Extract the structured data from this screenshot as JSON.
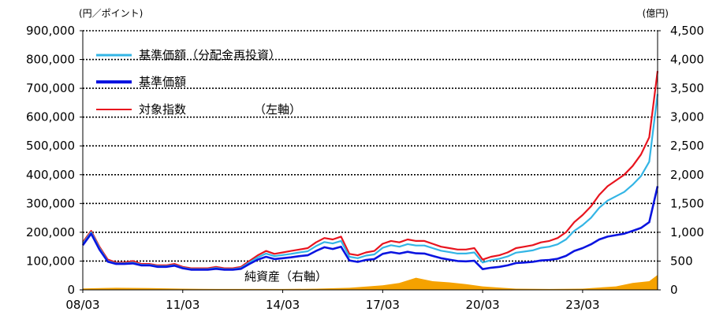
{
  "chart_data": {
    "type": "line",
    "left_axis": {
      "unit": "(円／ポイント)",
      "ylim": [
        0,
        900000
      ],
      "ticks": [
        0,
        100000,
        200000,
        300000,
        400000,
        500000,
        600000,
        700000,
        800000,
        900000
      ],
      "tick_labels": [
        "0",
        "100,000",
        "200,000",
        "300,000",
        "400,000",
        "500,000",
        "600,000",
        "700,000",
        "800,000",
        "900,000"
      ]
    },
    "right_axis": {
      "unit": "(億円)",
      "ylim": [
        0,
        4500
      ],
      "ticks": [
        0,
        500,
        1000,
        1500,
        2000,
        2500,
        3000,
        3500,
        4000,
        4500
      ],
      "tick_labels": [
        "0",
        "500",
        "1,000",
        "1,500",
        "2,000",
        "2,500",
        "3,000",
        "3,500",
        "4,000",
        "4,500"
      ]
    },
    "x_axis": {
      "range": [
        "2008-03",
        "2025-06"
      ],
      "tick_labels": [
        "08/03",
        "11/03",
        "14/03",
        "17/03",
        "20/03",
        "23/03"
      ],
      "tick_dates": [
        "2008-03",
        "2011-03",
        "2014-03",
        "2017-03",
        "2020-03",
        "2023-03"
      ]
    },
    "grid": "horizontal-dotted",
    "legend": {
      "position": "top-left",
      "items": [
        {
          "label": "基準価額（分配金再投資）",
          "color": "#33b5e5"
        },
        {
          "label": "基準価額",
          "color": "#0a14e0"
        },
        {
          "label": "対象指数",
          "color": "#e8141e"
        }
      ],
      "axis_note": "（左軸）"
    },
    "area_label": "純資産（右軸）",
    "series": [
      {
        "name": "対象指数",
        "axis": "left",
        "color": "#e8141e",
        "x": [
          "2008-03",
          "2008-06",
          "2008-09",
          "2008-12",
          "2009-03",
          "2009-06",
          "2009-09",
          "2009-12",
          "2010-03",
          "2010-06",
          "2010-09",
          "2010-12",
          "2011-03",
          "2011-06",
          "2011-09",
          "2011-12",
          "2012-03",
          "2012-06",
          "2012-09",
          "2012-12",
          "2013-03",
          "2013-06",
          "2013-09",
          "2013-12",
          "2014-03",
          "2014-06",
          "2014-09",
          "2014-12",
          "2015-03",
          "2015-06",
          "2015-09",
          "2015-12",
          "2016-03",
          "2016-06",
          "2016-09",
          "2016-12",
          "2017-03",
          "2017-06",
          "2017-09",
          "2017-12",
          "2018-03",
          "2018-06",
          "2018-09",
          "2018-12",
          "2019-03",
          "2019-06",
          "2019-09",
          "2019-12",
          "2020-03",
          "2020-06",
          "2020-09",
          "2020-12",
          "2021-03",
          "2021-06",
          "2021-09",
          "2021-12",
          "2022-03",
          "2022-06",
          "2022-09",
          "2022-12",
          "2023-03",
          "2023-06",
          "2023-09",
          "2023-12",
          "2024-03",
          "2024-06",
          "2024-09",
          "2024-12",
          "2025-03",
          "2025-06"
        ],
        "values": [
          165000,
          205000,
          150000,
          105000,
          95000,
          95000,
          100000,
          90000,
          90000,
          85000,
          85000,
          90000,
          80000,
          75000,
          75000,
          75000,
          80000,
          75000,
          75000,
          80000,
          100000,
          120000,
          135000,
          125000,
          130000,
          135000,
          140000,
          145000,
          165000,
          180000,
          175000,
          185000,
          125000,
          120000,
          130000,
          135000,
          160000,
          170000,
          165000,
          175000,
          170000,
          170000,
          160000,
          150000,
          145000,
          140000,
          140000,
          145000,
          105000,
          115000,
          120000,
          130000,
          145000,
          150000,
          155000,
          165000,
          170000,
          180000,
          200000,
          235000,
          260000,
          290000,
          330000,
          360000,
          380000,
          400000,
          430000,
          470000,
          530000,
          760000
        ]
      },
      {
        "name": "基準価額（分配金再投資）",
        "axis": "left",
        "color": "#33b5e5",
        "x": [
          "2008-03",
          "2008-06",
          "2008-09",
          "2008-12",
          "2009-03",
          "2009-06",
          "2009-09",
          "2009-12",
          "2010-03",
          "2010-06",
          "2010-09",
          "2010-12",
          "2011-03",
          "2011-06",
          "2011-09",
          "2011-12",
          "2012-03",
          "2012-06",
          "2012-09",
          "2012-12",
          "2013-03",
          "2013-06",
          "2013-09",
          "2013-12",
          "2014-03",
          "2014-06",
          "2014-09",
          "2014-12",
          "2015-03",
          "2015-06",
          "2015-09",
          "2015-12",
          "2016-03",
          "2016-06",
          "2016-09",
          "2016-12",
          "2017-03",
          "2017-06",
          "2017-09",
          "2017-12",
          "2018-03",
          "2018-06",
          "2018-09",
          "2018-12",
          "2019-03",
          "2019-06",
          "2019-09",
          "2019-12",
          "2020-03",
          "2020-06",
          "2020-09",
          "2020-12",
          "2021-03",
          "2021-06",
          "2021-09",
          "2021-12",
          "2022-03",
          "2022-06",
          "2022-09",
          "2022-12",
          "2023-03",
          "2023-06",
          "2023-09",
          "2023-12",
          "2024-03",
          "2024-06",
          "2024-09",
          "2024-12",
          "2025-03",
          "2025-06"
        ],
        "values": [
          160000,
          200000,
          145000,
          100000,
          92000,
          92000,
          95000,
          87000,
          87000,
          82000,
          82000,
          86000,
          77000,
          72000,
          72000,
          72000,
          76000,
          72000,
          72000,
          76000,
          95000,
          113000,
          126000,
          117000,
          121000,
          125000,
          130000,
          134000,
          152000,
          166000,
          161000,
          170000,
          115000,
          110000,
          119000,
          123000,
          146000,
          155000,
          150000,
          159000,
          154000,
          154000,
          145000,
          136000,
          131000,
          126000,
          126000,
          130000,
          95000,
          103000,
          108000,
          116000,
          129000,
          133000,
          137000,
          146000,
          150000,
          158000,
          175000,
          205000,
          225000,
          250000,
          285000,
          310000,
          325000,
          340000,
          365000,
          395000,
          445000,
          680000
        ]
      },
      {
        "name": "基準価額",
        "axis": "left",
        "color": "#0a14e0",
        "x": [
          "2008-03",
          "2008-06",
          "2008-09",
          "2008-12",
          "2009-03",
          "2009-06",
          "2009-09",
          "2009-12",
          "2010-03",
          "2010-06",
          "2010-09",
          "2010-12",
          "2011-03",
          "2011-06",
          "2011-09",
          "2011-12",
          "2012-03",
          "2012-06",
          "2012-09",
          "2012-12",
          "2013-03",
          "2013-06",
          "2013-09",
          "2013-12",
          "2014-03",
          "2014-06",
          "2014-09",
          "2014-12",
          "2015-03",
          "2015-06",
          "2015-09",
          "2015-12",
          "2016-03",
          "2016-06",
          "2016-09",
          "2016-12",
          "2017-03",
          "2017-06",
          "2017-09",
          "2017-12",
          "2018-03",
          "2018-06",
          "2018-09",
          "2018-12",
          "2019-03",
          "2019-06",
          "2019-09",
          "2019-12",
          "2020-03",
          "2020-06",
          "2020-09",
          "2020-12",
          "2021-03",
          "2021-06",
          "2021-09",
          "2021-12",
          "2022-03",
          "2022-06",
          "2022-09",
          "2022-12",
          "2023-03",
          "2023-06",
          "2023-09",
          "2023-12",
          "2024-03",
          "2024-06",
          "2024-09",
          "2024-12",
          "2025-03",
          "2025-06"
        ],
        "values": [
          155000,
          195000,
          140000,
          98000,
          90000,
          90000,
          92000,
          85000,
          85000,
          80000,
          80000,
          84000,
          75000,
          70000,
          70000,
          70000,
          73000,
          70000,
          70000,
          73000,
          90000,
          105000,
          115000,
          107000,
          110000,
          113000,
          117000,
          120000,
          135000,
          148000,
          142000,
          150000,
          102000,
          97000,
          104000,
          107000,
          125000,
          131000,
          126000,
          132000,
          127000,
          126000,
          118000,
          110000,
          105000,
          100000,
          99000,
          101000,
          72000,
          77000,
          80000,
          85000,
          93000,
          95000,
          97000,
          102000,
          104000,
          108000,
          118000,
          135000,
          145000,
          158000,
          175000,
          185000,
          190000,
          195000,
          205000,
          215000,
          235000,
          360000
        ]
      },
      {
        "name": "純資産",
        "axis": "right",
        "type": "area",
        "color": "#f5a200",
        "x": [
          "2008-03",
          "2009-03",
          "2010-03",
          "2011-03",
          "2012-03",
          "2013-03",
          "2014-03",
          "2015-03",
          "2016-03",
          "2017-03",
          "2017-09",
          "2018-03",
          "2018-09",
          "2019-03",
          "2019-09",
          "2020-03",
          "2020-09",
          "2021-03",
          "2022-03",
          "2023-03",
          "2024-03",
          "2024-09",
          "2025-03",
          "2025-06"
        ],
        "values": [
          25,
          35,
          30,
          20,
          15,
          15,
          15,
          20,
          35,
          80,
          120,
          210,
          150,
          130,
          100,
          60,
          40,
          20,
          15,
          20,
          60,
          120,
          150,
          260
        ]
      }
    ]
  }
}
